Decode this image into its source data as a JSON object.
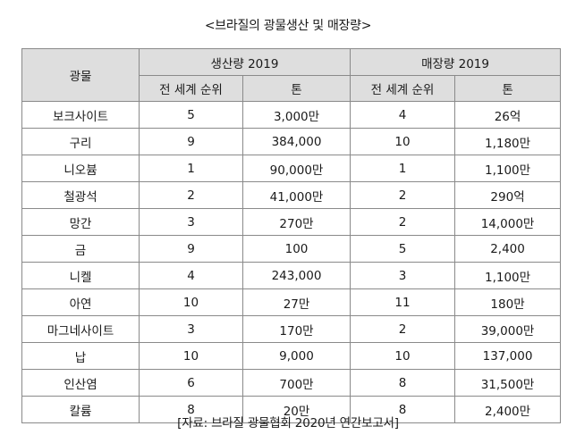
{
  "title": "<브라질의 광물생산 및 매장량>",
  "header": {
    "mineral": "광물",
    "production_group": "생산량 2019",
    "reserves_group": "매장량 2019",
    "rank": "전 세계 순위",
    "tons": "톤"
  },
  "rows": [
    {
      "mineral": "보크사이트",
      "prod_rank": "5",
      "prod_tons": "3,000만",
      "res_rank": "4",
      "res_tons": "26억"
    },
    {
      "mineral": "구리",
      "prod_rank": "9",
      "prod_tons": "384,000",
      "res_rank": "10",
      "res_tons": "1,180만"
    },
    {
      "mineral": "니오븀",
      "prod_rank": "1",
      "prod_tons": "90,000만",
      "res_rank": "1",
      "res_tons": "1,100만"
    },
    {
      "mineral": "철광석",
      "prod_rank": "2",
      "prod_tons": "41,000만",
      "res_rank": "2",
      "res_tons": "290억"
    },
    {
      "mineral": "망간",
      "prod_rank": "3",
      "prod_tons": "270만",
      "res_rank": "2",
      "res_tons": "14,000만"
    },
    {
      "mineral": "금",
      "prod_rank": "9",
      "prod_tons": "100",
      "res_rank": "5",
      "res_tons": "2,400"
    },
    {
      "mineral": "니켈",
      "prod_rank": "4",
      "prod_tons": "243,000",
      "res_rank": "3",
      "res_tons": "1,100만"
    },
    {
      "mineral": "아연",
      "prod_rank": "10",
      "prod_tons": "27만",
      "res_rank": "11",
      "res_tons": "180만"
    },
    {
      "mineral": "마그네사이트",
      "prod_rank": "3",
      "prod_tons": "170만",
      "res_rank": "2",
      "res_tons": "39,000만"
    },
    {
      "mineral": "납",
      "prod_rank": "10",
      "prod_tons": "9,000",
      "res_rank": "10",
      "res_tons": "137,000"
    },
    {
      "mineral": "인산염",
      "prod_rank": "6",
      "prod_tons": "700만",
      "res_rank": "8",
      "res_tons": "31,500만"
    },
    {
      "mineral": "칼륨",
      "prod_rank": "8",
      "prod_tons": "20만",
      "res_rank": "8",
      "res_tons": "2,400만"
    }
  ],
  "source": "[자료: 브라질 광물협회 2020년 연간보고서]"
}
